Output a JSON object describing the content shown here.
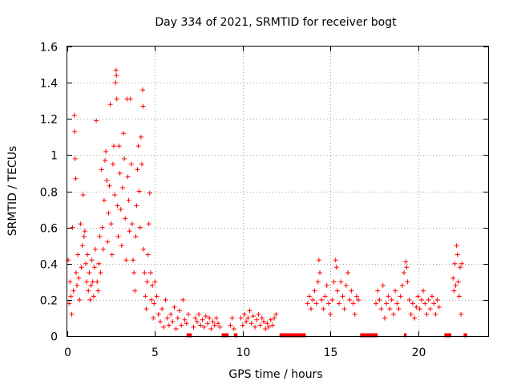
{
  "chart_data": {
    "type": "scatter",
    "title": "Day 334 of 2021, SRMTID for receiver bogt",
    "xlabel": "GPS time / hours",
    "ylabel": "SRMTID / TECUs",
    "xlim": [
      0,
      24
    ],
    "ylim": [
      0,
      1.6
    ],
    "xticks": [
      0,
      5,
      10,
      15,
      20
    ],
    "yticks": [
      0,
      0.2,
      0.4,
      0.6,
      0.8,
      1,
      1.2,
      1.4,
      1.6
    ],
    "xtick_labels": [
      "0",
      "5",
      "10",
      "15",
      "20"
    ],
    "ytick_labels": [
      "0",
      "0.2",
      "0.4",
      "0.6",
      "0.8",
      "1",
      "1.2",
      "1.4",
      "1.6"
    ],
    "grid": true,
    "marker": "+",
    "color": "#ff0000",
    "series": [
      {
        "name": "SRMTID",
        "points": [
          [
            0.05,
            0.42
          ],
          [
            0.1,
            0.18
          ],
          [
            0.15,
            0.3
          ],
          [
            0.2,
            0.22
          ],
          [
            0.25,
            0.12
          ],
          [
            0.3,
            0.6
          ],
          [
            0.35,
            0.25
          ],
          [
            0.4,
            1.22
          ],
          [
            0.42,
            1.13
          ],
          [
            0.45,
            0.98
          ],
          [
            0.48,
            0.87
          ],
          [
            0.5,
            0.35
          ],
          [
            0.55,
            0.28
          ],
          [
            0.6,
            0.45
          ],
          [
            0.65,
            0.32
          ],
          [
            0.7,
            0.2
          ],
          [
            0.75,
            0.62
          ],
          [
            0.8,
            0.38
          ],
          [
            0.85,
            0.5
          ],
          [
            0.9,
            0.78
          ],
          [
            0.95,
            0.55
          ],
          [
            1.0,
            0.58
          ],
          [
            1.05,
            0.4
          ],
          [
            1.1,
            0.3
          ],
          [
            1.15,
            0.45
          ],
          [
            1.2,
            0.25
          ],
          [
            1.25,
            0.35
          ],
          [
            1.3,
            0.2
          ],
          [
            1.35,
            0.28
          ],
          [
            1.4,
            0.42
          ],
          [
            1.45,
            0.3
          ],
          [
            1.5,
            0.22
          ],
          [
            1.55,
            0.38
          ],
          [
            1.6,
            0.48
          ],
          [
            1.65,
            1.19
          ],
          [
            1.7,
            0.3
          ],
          [
            1.75,
            0.25
          ],
          [
            1.8,
            0.4
          ],
          [
            1.85,
            0.55
          ],
          [
            1.9,
            0.35
          ],
          [
            1.95,
            0.92
          ],
          [
            2.0,
            0.6
          ],
          [
            2.05,
            0.48
          ],
          [
            2.1,
            0.75
          ],
          [
            2.15,
            0.97
          ],
          [
            2.2,
            1.02
          ],
          [
            2.25,
            0.86
          ],
          [
            2.3,
            0.52
          ],
          [
            2.35,
            0.68
          ],
          [
            2.4,
            0.83
          ],
          [
            2.45,
            1.28
          ],
          [
            2.5,
            0.62
          ],
          [
            2.55,
            0.45
          ],
          [
            2.6,
            0.95
          ],
          [
            2.65,
            1.05
          ],
          [
            2.7,
            0.78
          ],
          [
            2.75,
            1.4
          ],
          [
            2.78,
            1.47
          ],
          [
            2.8,
            1.44
          ],
          [
            2.82,
            1.31
          ],
          [
            2.85,
            0.72
          ],
          [
            2.9,
            0.55
          ],
          [
            2.95,
            1.05
          ],
          [
            3.0,
            0.9
          ],
          [
            3.05,
            0.7
          ],
          [
            3.1,
            0.5
          ],
          [
            3.15,
            0.82
          ],
          [
            3.2,
            1.12
          ],
          [
            3.25,
            0.98
          ],
          [
            3.3,
            0.65
          ],
          [
            3.35,
            0.42
          ],
          [
            3.4,
            1.31
          ],
          [
            3.45,
            0.88
          ],
          [
            3.5,
            0.75
          ],
          [
            3.55,
            0.58
          ],
          [
            3.6,
            1.31
          ],
          [
            3.65,
            0.95
          ],
          [
            3.7,
            0.62
          ],
          [
            3.75,
            0.42
          ],
          [
            3.8,
            0.35
          ],
          [
            3.85,
            0.25
          ],
          [
            3.9,
            0.55
          ],
          [
            3.95,
            0.72
          ],
          [
            4.0,
            0.92
          ],
          [
            4.05,
            1.05
          ],
          [
            4.1,
            0.8
          ],
          [
            4.15,
            0.6
          ],
          [
            4.2,
            1.1
          ],
          [
            4.25,
            0.95
          ],
          [
            4.3,
            1.36
          ],
          [
            4.32,
            1.27
          ],
          [
            4.35,
            0.48
          ],
          [
            4.4,
            0.35
          ],
          [
            4.45,
            0.22
          ],
          [
            4.5,
            0.15
          ],
          [
            4.55,
            0.3
          ],
          [
            4.6,
            0.45
          ],
          [
            4.65,
            0.62
          ],
          [
            4.7,
            0.79
          ],
          [
            4.75,
            0.35
          ],
          [
            4.8,
            0.2
          ],
          [
            4.85,
            0.28
          ],
          [
            4.9,
            0.1
          ],
          [
            4.95,
            0.18
          ],
          [
            5.0,
            0.3
          ],
          [
            5.1,
            0.22
          ],
          [
            5.2,
            0.12
          ],
          [
            5.3,
            0.08
          ],
          [
            5.4,
            0.15
          ],
          [
            5.5,
            0.05
          ],
          [
            5.6,
            0.2
          ],
          [
            5.7,
            0.1
          ],
          [
            5.8,
            0.06
          ],
          [
            5.9,
            0.12
          ],
          [
            6.0,
            0.08
          ],
          [
            6.1,
            0.16
          ],
          [
            6.2,
            0.04
          ],
          [
            6.3,
            0.1
          ],
          [
            6.4,
            0.14
          ],
          [
            6.5,
            0.06
          ],
          [
            6.6,
            0.2
          ],
          [
            6.7,
            0.09
          ],
          [
            6.8,
            0.07
          ],
          [
            6.9,
            0.12
          ],
          [
            7.2,
            0.05
          ],
          [
            7.3,
            0.1
          ],
          [
            7.4,
            0.08
          ],
          [
            7.5,
            0.12
          ],
          [
            7.6,
            0.06
          ],
          [
            7.7,
            0.09
          ],
          [
            7.8,
            0.05
          ],
          [
            7.9,
            0.11
          ],
          [
            8.0,
            0.07
          ],
          [
            8.1,
            0.1
          ],
          [
            8.2,
            0.04
          ],
          [
            8.3,
            0.08
          ],
          [
            8.4,
            0.06
          ],
          [
            8.5,
            0.1
          ],
          [
            8.6,
            0.07
          ],
          [
            8.7,
            0.05
          ],
          [
            9.3,
            0.06
          ],
          [
            9.4,
            0.1
          ],
          [
            9.5,
            0.04
          ],
          [
            9.9,
            0.1
          ],
          [
            10.0,
            0.06
          ],
          [
            10.1,
            0.12
          ],
          [
            10.2,
            0.08
          ],
          [
            10.3,
            0.1
          ],
          [
            10.4,
            0.14
          ],
          [
            10.5,
            0.07
          ],
          [
            10.6,
            0.11
          ],
          [
            10.7,
            0.05
          ],
          [
            10.8,
            0.09
          ],
          [
            10.9,
            0.12
          ],
          [
            11.0,
            0.06
          ],
          [
            11.1,
            0.1
          ],
          [
            11.2,
            0.08
          ],
          [
            11.3,
            0.04
          ],
          [
            11.4,
            0.07
          ],
          [
            11.5,
            0.05
          ],
          [
            11.6,
            0.09
          ],
          [
            11.7,
            0.06
          ],
          [
            11.8,
            0.1
          ],
          [
            11.9,
            0.12
          ],
          [
            13.7,
            0.18
          ],
          [
            13.8,
            0.22
          ],
          [
            13.9,
            0.15
          ],
          [
            14.0,
            0.2
          ],
          [
            14.1,
            0.25
          ],
          [
            14.2,
            0.18
          ],
          [
            14.3,
            0.3
          ],
          [
            14.35,
            0.42
          ],
          [
            14.4,
            0.35
          ],
          [
            14.5,
            0.2
          ],
          [
            14.6,
            0.15
          ],
          [
            14.7,
            0.22
          ],
          [
            14.8,
            0.28
          ],
          [
            14.9,
            0.18
          ],
          [
            15.0,
            0.12
          ],
          [
            15.1,
            0.2
          ],
          [
            15.2,
            0.3
          ],
          [
            15.3,
            0.42
          ],
          [
            15.35,
            0.38
          ],
          [
            15.4,
            0.25
          ],
          [
            15.5,
            0.18
          ],
          [
            15.6,
            0.3
          ],
          [
            15.7,
            0.22
          ],
          [
            15.8,
            0.15
          ],
          [
            15.9,
            0.28
          ],
          [
            16.0,
            0.35
          ],
          [
            16.1,
            0.2
          ],
          [
            16.2,
            0.25
          ],
          [
            16.3,
            0.18
          ],
          [
            16.4,
            0.12
          ],
          [
            16.5,
            0.22
          ],
          [
            16.6,
            0.2
          ],
          [
            17.6,
            0.18
          ],
          [
            17.7,
            0.25
          ],
          [
            17.8,
            0.2
          ],
          [
            17.9,
            0.15
          ],
          [
            18.0,
            0.28
          ],
          [
            18.1,
            0.1
          ],
          [
            18.2,
            0.18
          ],
          [
            18.3,
            0.22
          ],
          [
            18.4,
            0.15
          ],
          [
            18.5,
            0.2
          ],
          [
            18.6,
            0.12
          ],
          [
            18.7,
            0.25
          ],
          [
            18.8,
            0.18
          ],
          [
            18.9,
            0.15
          ],
          [
            19.0,
            0.22
          ],
          [
            19.1,
            0.28
          ],
          [
            19.2,
            0.35
          ],
          [
            19.3,
            0.41
          ],
          [
            19.35,
            0.38
          ],
          [
            19.4,
            0.3
          ],
          [
            19.5,
            0.2
          ],
          [
            19.6,
            0.12
          ],
          [
            19.7,
            0.18
          ],
          [
            19.8,
            0.1
          ],
          [
            19.9,
            0.16
          ],
          [
            20.0,
            0.22
          ],
          [
            20.1,
            0.15
          ],
          [
            20.2,
            0.2
          ],
          [
            20.3,
            0.25
          ],
          [
            20.4,
            0.18
          ],
          [
            20.5,
            0.12
          ],
          [
            20.6,
            0.2
          ],
          [
            20.7,
            0.15
          ],
          [
            20.8,
            0.22
          ],
          [
            20.9,
            0.18
          ],
          [
            21.0,
            0.12
          ],
          [
            21.1,
            0.2
          ],
          [
            21.2,
            0.16
          ],
          [
            22.0,
            0.32
          ],
          [
            22.05,
            0.25
          ],
          [
            22.1,
            0.4
          ],
          [
            22.15,
            0.28
          ],
          [
            22.2,
            0.5
          ],
          [
            22.25,
            0.45
          ],
          [
            22.3,
            0.3
          ],
          [
            22.35,
            0.22
          ],
          [
            22.4,
            0.38
          ],
          [
            22.45,
            0.12
          ],
          [
            22.5,
            0.4
          ]
        ]
      }
    ],
    "data_gaps_at_zero": [
      [
        6.8,
        7.1
      ],
      [
        8.8,
        9.2
      ],
      [
        9.5,
        9.7
      ],
      [
        12.1,
        13.6
      ],
      [
        16.7,
        17.7
      ],
      [
        19.2,
        19.35
      ],
      [
        21.5,
        21.9
      ],
      [
        22.6,
        22.8
      ]
    ]
  }
}
